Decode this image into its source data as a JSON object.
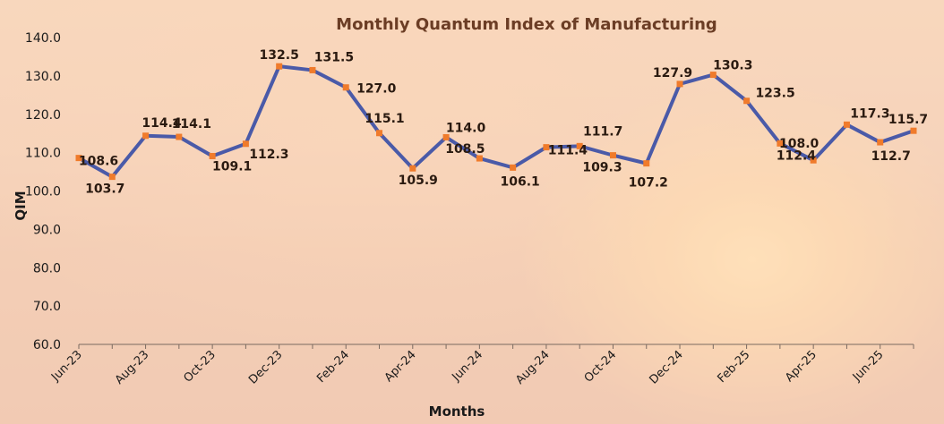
{
  "chart_data": {
    "type": "line",
    "title": "Monthly Quantum Index of Manufacturing",
    "xlabel": "Months",
    "ylabel": "QIM",
    "ylim": [
      60,
      140
    ],
    "yticks": [
      "60.0",
      "70.0",
      "80.0",
      "90.0",
      "100.0",
      "110.0",
      "120.0",
      "130.0",
      "140.0"
    ],
    "x": [
      "Jun-23",
      "Jul-23",
      "Aug-23",
      "Sep-23",
      "Oct-23",
      "Nov-23",
      "Dec-23",
      "Jan-24",
      "Feb-24",
      "Mar-24",
      "Apr-24",
      "May-24",
      "Jun-24",
      "Jul-24",
      "Aug-24",
      "Sep-24",
      "Oct-24",
      "Nov-24",
      "Dec-24",
      "Jan-25",
      "Feb-25",
      "Mar-25",
      "Apr-25",
      "May-25",
      "Jun-25",
      "Jul-25"
    ],
    "xtick_labels": [
      "Jun-23",
      "",
      "Aug-23",
      "",
      "Oct-23",
      "",
      "Dec-23",
      "",
      "Feb-24",
      "",
      "Apr-24",
      "",
      "Jun-24",
      "",
      "Aug-24",
      "",
      "Oct-24",
      "",
      "Dec-24",
      "",
      "Feb-25",
      "",
      "Apr-25",
      "",
      "Jun-25",
      ""
    ],
    "values": [
      108.6,
      103.7,
      114.4,
      114.1,
      109.1,
      112.3,
      132.5,
      131.5,
      127.0,
      115.1,
      105.9,
      114.0,
      108.5,
      106.1,
      111.4,
      111.7,
      109.3,
      107.2,
      127.9,
      130.3,
      123.5,
      112.4,
      108.0,
      117.3,
      112.7,
      115.7
    ],
    "data_labels": [
      "108.6",
      "103.7",
      "114.4",
      "114.1",
      "109.1",
      "112.3",
      "132.5",
      "131.5",
      "127.0",
      "115.1",
      "105.9",
      "114.0",
      "108.5",
      "106.1",
      "111.4",
      "111.7",
      "109.3",
      "107.2",
      "127.9",
      "130.3",
      "123.5",
      "112.4",
      "108.0",
      "117.3",
      "112.7",
      "115.7"
    ],
    "grid": false,
    "line_color": "#4a5aa8",
    "marker_color": "#f07b2b",
    "title_color": "#6b3d25"
  }
}
